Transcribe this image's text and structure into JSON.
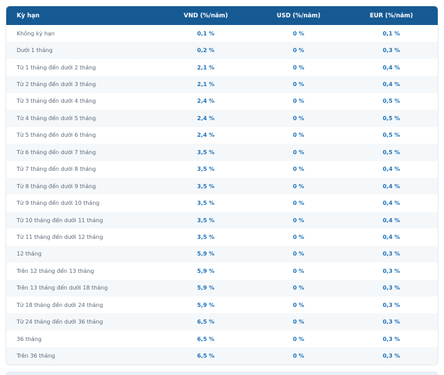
{
  "table": {
    "columns": [
      "Kỳ hạn",
      "VND (%/năm)",
      "USD (%/năm)",
      "EUR (%/năm)"
    ],
    "rows": [
      {
        "term": "Không kỳ hạn",
        "vnd": "0,1 %",
        "usd": "0 %",
        "eur": "0,1 %"
      },
      {
        "term": "Dưới 1 tháng",
        "vnd": "0,2 %",
        "usd": "0 %",
        "eur": "0,3 %"
      },
      {
        "term": "Từ 1 tháng đến dưới 2 tháng",
        "vnd": "2,1 %",
        "usd": "0 %",
        "eur": "0,4 %"
      },
      {
        "term": "Từ 2 tháng đến dưới 3 tháng",
        "vnd": "2,1 %",
        "usd": "0 %",
        "eur": "0,4 %"
      },
      {
        "term": "Từ 3 tháng đến dưới 4 tháng",
        "vnd": "2,4 %",
        "usd": "0 %",
        "eur": "0,5 %"
      },
      {
        "term": "Từ 4 tháng đến dưới 5 tháng",
        "vnd": "2,4 %",
        "usd": "0 %",
        "eur": "0,5 %"
      },
      {
        "term": "Từ 5 tháng đến dưới 6 tháng",
        "vnd": "2,4 %",
        "usd": "0 %",
        "eur": "0,5 %"
      },
      {
        "term": "Từ 6 tháng đến dưới 7 tháng",
        "vnd": "3,5 %",
        "usd": "0 %",
        "eur": "0,5 %"
      },
      {
        "term": "Từ 7 tháng đến dưới 8 tháng",
        "vnd": "3,5 %",
        "usd": "0 %",
        "eur": "0,4 %"
      },
      {
        "term": "Từ 8 tháng đến dưới 9 tháng",
        "vnd": "3,5 %",
        "usd": "0 %",
        "eur": "0,4 %"
      },
      {
        "term": "Từ 9 tháng đến dưới 10 tháng",
        "vnd": "3,5 %",
        "usd": "0 %",
        "eur": "0,4 %"
      },
      {
        "term": "Từ 10 tháng đến dưới 11 tháng",
        "vnd": "3,5 %",
        "usd": "0 %",
        "eur": "0,4 %"
      },
      {
        "term": "Từ 11 tháng đến dưới 12 tháng",
        "vnd": "3,5 %",
        "usd": "0 %",
        "eur": "0,4 %"
      },
      {
        "term": "12 tháng",
        "vnd": "5,9 %",
        "usd": "0 %",
        "eur": "0,3 %"
      },
      {
        "term": "Trên 12 tháng đến 13 tháng",
        "vnd": "5,9 %",
        "usd": "0 %",
        "eur": "0,3 %"
      },
      {
        "term": "Trên 13 tháng đến dưới 18 tháng",
        "vnd": "5,9 %",
        "usd": "0 %",
        "eur": "0,3 %"
      },
      {
        "term": "Từ 18 tháng đến dưới 24 tháng",
        "vnd": "5,9 %",
        "usd": "0 %",
        "eur": "0,3 %"
      },
      {
        "term": "Từ 24 tháng đến dưới 36 tháng",
        "vnd": "6,5 %",
        "usd": "0 %",
        "eur": "0,3 %"
      },
      {
        "term": "36 tháng",
        "vnd": "6,5 %",
        "usd": "0 %",
        "eur": "0,3 %"
      },
      {
        "term": "Trên 36 tháng",
        "vnd": "6,5 %",
        "usd": "0 %",
        "eur": "0,3 %"
      }
    ]
  },
  "colors": {
    "header_bg": "#165a94",
    "header_text": "#ffffff",
    "row_alt_bg": "#f5f8fa",
    "row_bg": "#ffffff",
    "label_color": "#5b6a7a",
    "value_color": "#2173b9",
    "card_border": "#e4e8ec",
    "footer_bg": "#e6f0f8",
    "page_bg": "#ffffff"
  }
}
